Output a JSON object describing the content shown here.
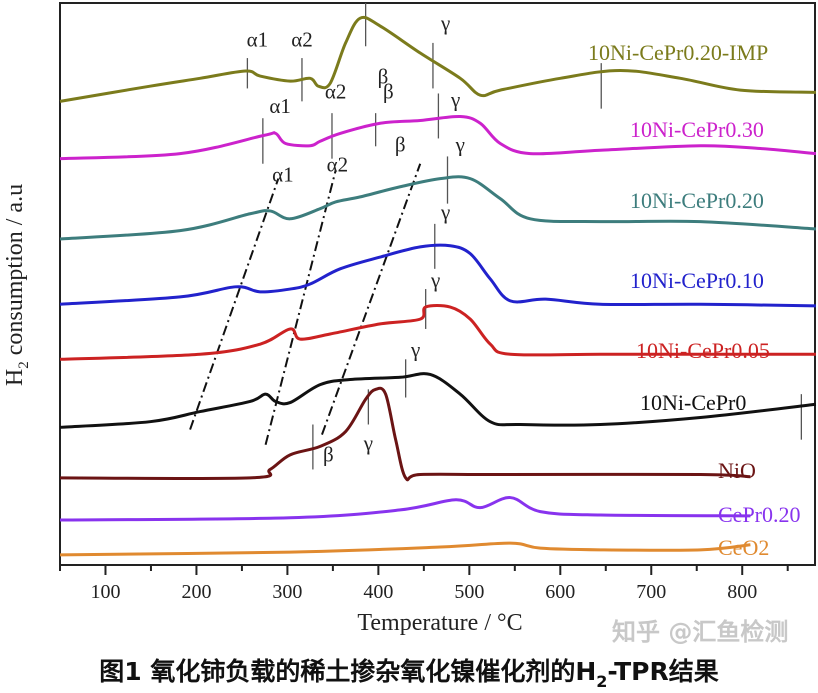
{
  "chart_data": {
    "type": "line",
    "xlabel": "Temperature / °C",
    "ylabel": "H2 consumption / a.u",
    "ylabel_main": "H",
    "ylabel_sub": "2",
    "ylabel_rest": " consumption / a.u",
    "xlim": [
      50,
      880
    ],
    "ylim": [
      0,
      100
    ],
    "xticks": [
      100,
      200,
      300,
      400,
      500,
      600,
      700,
      800
    ],
    "xtick_labels": [
      "100",
      "200",
      "300",
      "400",
      "500",
      "600",
      "700",
      "800"
    ],
    "grid": false,
    "series": [
      {
        "name": "10Ni-CePr0.20-IMP",
        "color": "#7b7b1c",
        "x": [
          50,
          149,
          204,
          254,
          270,
          303,
          325,
          334,
          347,
          364,
          380,
          402,
          446,
          490,
          512,
          534,
          600,
          666,
          732,
          798,
          881
        ],
        "y": [
          82.5,
          85.2,
          86.6,
          87.9,
          87.0,
          86.1,
          86.6,
          85.2,
          85.7,
          92.9,
          97.3,
          95.9,
          91.1,
          86.6,
          83.6,
          84.5,
          86.6,
          88.0,
          86.6,
          84.5,
          84.1
        ]
      },
      {
        "name": "10Ni-CePr0.30",
        "color": "#cc22cc",
        "x": [
          50,
          182,
          273,
          287,
          298,
          325,
          336,
          358,
          402,
          446,
          490,
          512,
          534,
          567,
          644,
          754,
          820,
          881
        ],
        "y": [
          72.3,
          73.2,
          76.4,
          76.8,
          75.0,
          74.6,
          75.4,
          76.8,
          78.6,
          79.1,
          79.8,
          78.6,
          75.0,
          73.2,
          73.8,
          74.6,
          74.1,
          73.2
        ]
      },
      {
        "name": "10Ni-CePr0.20",
        "color": "#3d7d7d",
        "x": [
          50,
          182,
          259,
          281,
          303,
          336,
          353,
          380,
          424,
          468,
          501,
          534,
          567,
          644,
          754,
          881
        ],
        "y": [
          58.0,
          59.5,
          62.5,
          63.0,
          61.6,
          63.4,
          64.6,
          65.5,
          67.3,
          68.75,
          68.75,
          65.2,
          61.6,
          61.1,
          61.1,
          59.8
        ]
      },
      {
        "name": "10Ni-CePr0.10",
        "color": "#2222cc",
        "x": [
          50,
          182,
          243,
          270,
          303,
          325,
          358,
          402,
          446,
          479,
          501,
          523,
          545,
          584,
          644,
          754,
          881
        ],
        "y": [
          46.4,
          47.7,
          49.5,
          48.6,
          49.1,
          50.0,
          52.7,
          54.8,
          56.6,
          56.8,
          55.4,
          50.9,
          47.0,
          47.3,
          46.4,
          46.4,
          46.1
        ]
      },
      {
        "name": "10Ni-CePr0.05",
        "color": "#cc2222",
        "x": [
          50,
          204,
          270,
          303,
          314,
          347,
          402,
          446,
          452,
          479,
          501,
          523,
          545,
          644,
          754,
          881
        ],
        "y": [
          36.6,
          37.5,
          39.3,
          42.0,
          40.2,
          41.1,
          42.9,
          43.75,
          45.9,
          45.9,
          43.75,
          39.3,
          37.5,
          37.5,
          37.5,
          37.5
        ]
      },
      {
        "name": "10Ni-CePr0",
        "color": "#111111",
        "x": [
          50,
          149,
          204,
          259,
          276,
          287,
          303,
          336,
          369,
          424,
          457,
          490,
          523,
          556,
          644,
          754,
          881
        ],
        "y": [
          24.5,
          25.5,
          27.3,
          29.1,
          30.4,
          29.1,
          28.9,
          32.1,
          33.0,
          33.4,
          33.9,
          30.4,
          25.5,
          25.0,
          25.0,
          26.25,
          28.6
        ]
      },
      {
        "name": "NiO",
        "color": "#6b1414",
        "x": [
          50,
          259,
          281,
          303,
          336,
          364,
          386,
          397,
          408,
          419,
          430,
          446,
          534,
          754,
          809
        ],
        "y": [
          15.5,
          15.5,
          17.0,
          19.6,
          21.1,
          23.75,
          29.5,
          31.25,
          30.4,
          22.3,
          15.5,
          16.1,
          16.1,
          16.1,
          15.7
        ]
      },
      {
        "name": "CePr0.20",
        "color": "#8833ee",
        "x": [
          50,
          303,
          424,
          485,
          512,
          545,
          578,
          644,
          809
        ],
        "y": [
          8.0,
          8.4,
          9.8,
          11.6,
          10.2,
          12.0,
          9.5,
          8.9,
          8.75
        ]
      },
      {
        "name": "CeO2",
        "color": "#e08a30",
        "x": [
          50,
          303,
          468,
          545,
          578,
          644,
          754,
          809
        ],
        "y": [
          1.8,
          2.3,
          3.2,
          3.9,
          3.0,
          2.7,
          2.7,
          3.6
        ]
      }
    ],
    "peak_markers": [
      {
        "x": 256,
        "y": [
          84.8,
          90.2
        ]
      },
      {
        "x": 316,
        "y": [
          82.5,
          90.2
        ]
      },
      {
        "x": 386,
        "y": [
          92.3,
          100
        ]
      },
      {
        "x": 460,
        "y": [
          84.8,
          92.9
        ]
      },
      {
        "x": 645,
        "y": [
          81.2,
          89.3
        ]
      },
      {
        "x": 273,
        "y": [
          71.4,
          79.5
        ]
      },
      {
        "x": 349,
        "y": [
          72.3,
          80.4
        ]
      },
      {
        "x": 397,
        "y": [
          74.5,
          80.4
        ]
      },
      {
        "x": 466,
        "y": [
          75.9,
          83.9
        ]
      },
      {
        "x": 476,
        "y": [
          64.3,
          72.7
        ]
      },
      {
        "x": 462,
        "y": [
          52.7,
          60.7
        ]
      },
      {
        "x": 452,
        "y": [
          42.0,
          49.1
        ]
      },
      {
        "x": 430,
        "y": [
          29.8,
          36.6
        ]
      },
      {
        "x": 865,
        "y": [
          22.3,
          30.4
        ]
      },
      {
        "x": 389,
        "y": [
          25.0,
          31.25
        ]
      },
      {
        "x": 328,
        "y": [
          17.0,
          25.0
        ]
      }
    ],
    "trend_lines": [
      {
        "label": "α1",
        "from": [
          193,
          24.1
        ],
        "to": [
          290,
          68.75
        ]
      },
      {
        "label": "α2",
        "from": [
          276,
          21.4
        ],
        "to": [
          353,
          70.2
        ]
      },
      {
        "label": "β",
        "from": [
          338,
          23.2
        ],
        "to": [
          446,
          71.4
        ]
      }
    ],
    "annotations": [
      {
        "text": "α1",
        "x": 267,
        "y": 92.3
      },
      {
        "text": "α2",
        "x": 316,
        "y": 92.3
      },
      {
        "text": "β",
        "x": 405,
        "y": 85.7
      },
      {
        "text": "γ",
        "x": 474,
        "y": 95.2
      },
      {
        "text": "α1",
        "x": 292,
        "y": 80.4
      },
      {
        "text": "α2",
        "x": 353,
        "y": 83.0
      },
      {
        "text": "β",
        "x": 411,
        "y": 83.0
      },
      {
        "text": "γ",
        "x": 485,
        "y": 81.6
      },
      {
        "text": "α1",
        "x": 295,
        "y": 68.2
      },
      {
        "text": "α2",
        "x": 355,
        "y": 70.0
      },
      {
        "text": "β",
        "x": 424,
        "y": 73.6
      },
      {
        "text": "γ",
        "x": 490,
        "y": 73.6
      },
      {
        "text": "γ",
        "x": 474,
        "y": 61.6
      },
      {
        "text": "γ",
        "x": 463,
        "y": 49.5
      },
      {
        "text": "γ",
        "x": 441,
        "y": 37.1
      },
      {
        "text": "γ",
        "x": 389,
        "y": 20.5
      },
      {
        "text": "β",
        "x": 345,
        "y": 18.4
      }
    ]
  },
  "caption": {
    "prefix": "图1 氧化铈负载的稀土掺杂氧化镍催化剂的H",
    "sub": "2",
    "suffix": "-TPR结果"
  },
  "watermark": "知乎 @汇鱼检测"
}
